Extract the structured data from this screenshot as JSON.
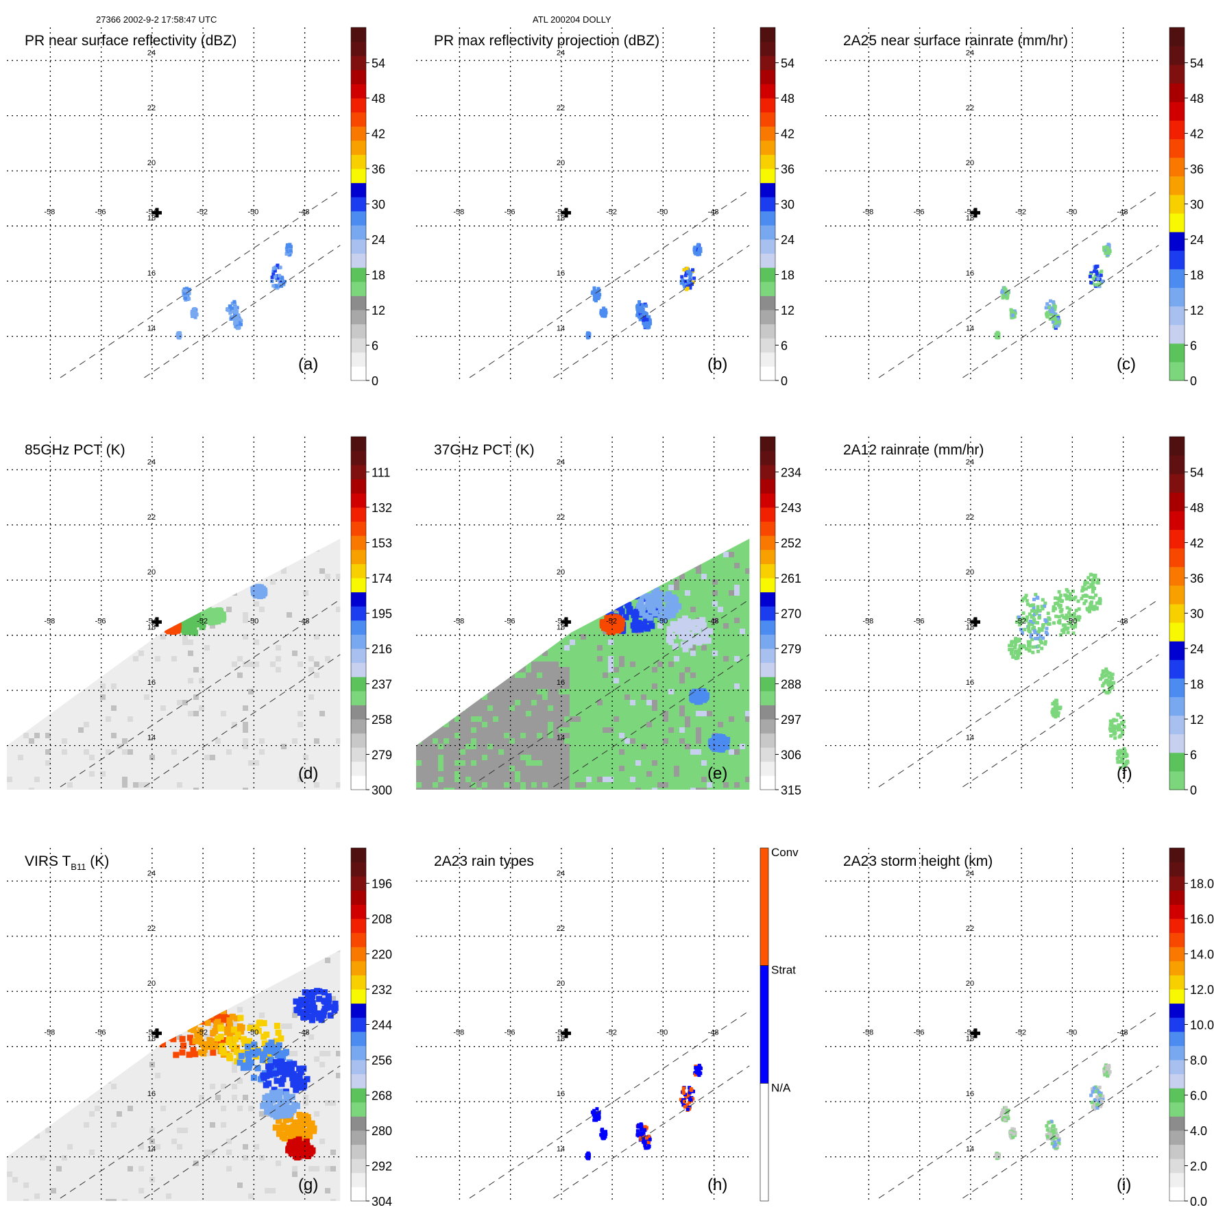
{
  "header": {
    "left": "27366 2002-9-2 17:58:47 UTC",
    "center": "ATL 200204 DOLLY"
  },
  "map": {
    "lon_ticks": [
      "-58",
      "-56",
      "-54",
      "-52",
      "-50",
      "-48"
    ],
    "lat_ticks": [
      "14",
      "16",
      "18",
      "20",
      "22",
      "24"
    ],
    "marker": "+"
  },
  "chart_data": [
    {
      "type": "heatmap",
      "panel": "(a)",
      "title": "PR near surface reflectivity (dBZ)",
      "colorbar": [
        "0",
        "6",
        "12",
        "18",
        "24",
        "30",
        "36",
        "42",
        "48",
        "54"
      ],
      "palette": "refl"
    },
    {
      "type": "heatmap",
      "panel": "(b)",
      "title": "PR max reflectivity projection (dBZ)",
      "colorbar": [
        "0",
        "6",
        "12",
        "18",
        "24",
        "30",
        "36",
        "42",
        "48",
        "54"
      ],
      "palette": "refl"
    },
    {
      "type": "heatmap",
      "panel": "(c)",
      "title": "2A25 near surface rainrate (mm/hr)",
      "colorbar": [
        "0",
        "6",
        "12",
        "18",
        "24",
        "30",
        "36",
        "42",
        "48",
        "54"
      ],
      "palette": "rain"
    },
    {
      "type": "heatmap",
      "panel": "(d)",
      "title": "85GHz PCT (K)",
      "colorbar": [
        "300",
        "279",
        "258",
        "237",
        "216",
        "195",
        "174",
        "153",
        "132",
        "111"
      ],
      "palette": "pct"
    },
    {
      "type": "heatmap",
      "panel": "(e)",
      "title": "37GHz PCT (K)",
      "colorbar": [
        "315",
        "306",
        "297",
        "288",
        "279",
        "270",
        "261",
        "252",
        "243",
        "234"
      ],
      "palette": "pct"
    },
    {
      "type": "heatmap",
      "panel": "(f)",
      "title": "2A12 rainrate (mm/hr)",
      "colorbar": [
        "0",
        "6",
        "12",
        "18",
        "24",
        "30",
        "36",
        "42",
        "48",
        "54"
      ],
      "palette": "rain"
    },
    {
      "type": "heatmap",
      "panel": "(g)",
      "title": "VIRS T",
      "title_sub": "B11",
      "title_end": " (K)",
      "colorbar": [
        "304",
        "292",
        "280",
        "268",
        "256",
        "244",
        "232",
        "220",
        "208",
        "196"
      ],
      "palette": "pct"
    },
    {
      "type": "heatmap",
      "panel": "(h)",
      "title": "2A23 rain types",
      "colorbar": [
        "N/A",
        "Strat",
        "Conv"
      ],
      "palette": "types"
    },
    {
      "type": "heatmap",
      "panel": "(i)",
      "title": "2A23 storm height (km)",
      "colorbar": [
        "0.0",
        "2.0",
        "4.0",
        "6.0",
        "8.0",
        "10.0",
        "12.0",
        "14.0",
        "16.0",
        "18.0"
      ],
      "palette": "height"
    }
  ],
  "colors": {
    "refl": [
      "#ffffff",
      "#f0f0f0",
      "#dcdcdc",
      "#c8c8c8",
      "#a8a8a8",
      "#8c8c8c",
      "#7cd67c",
      "#5cc35c",
      "#c8d0f0",
      "#a8c0f0",
      "#78a8f0",
      "#4c8cf0",
      "#1c3cf0",
      "#0000d0",
      "#f8f800",
      "#f8d000",
      "#f8a000",
      "#f87800",
      "#f84800",
      "#f02000",
      "#d00000",
      "#a80000",
      "#801010",
      "#601010",
      "#501010"
    ],
    "rain": [
      "#7cd67c",
      "#5cc35c",
      "#c8d0f0",
      "#a8c0f0",
      "#78a8f0",
      "#4c8cf0",
      "#1c3cf0",
      "#0000d0",
      "#f8f800",
      "#f8d000",
      "#f8a000",
      "#f87800",
      "#f84800",
      "#f02000",
      "#d00000",
      "#a80000",
      "#801010",
      "#601010",
      "#501010"
    ],
    "pct": [
      "#ffffff",
      "#f0f0f0",
      "#dcdcdc",
      "#c8c8c8",
      "#a8a8a8",
      "#8c8c8c",
      "#7cd67c",
      "#5cc35c",
      "#c8d0f0",
      "#a8c0f0",
      "#78a8f0",
      "#4c8cf0",
      "#1c3cf0",
      "#0000d0",
      "#f8f800",
      "#f8d000",
      "#f8a000",
      "#f87800",
      "#f84800",
      "#f02000",
      "#d00000",
      "#a80000",
      "#801010",
      "#601010",
      "#501010"
    ],
    "height": [
      "#ffffff",
      "#f0f0f0",
      "#dcdcdc",
      "#c8c8c8",
      "#a8a8a8",
      "#8c8c8c",
      "#7cd67c",
      "#5cc35c",
      "#c8d0f0",
      "#a8c0f0",
      "#78a8f0",
      "#4c8cf0",
      "#1c3cf0",
      "#0000d0",
      "#f8f800",
      "#f8d000",
      "#f8a000",
      "#f87800",
      "#f84800",
      "#f02000",
      "#d00000",
      "#a80000",
      "#801010",
      "#601010",
      "#501010"
    ],
    "types": [
      "#ffffff",
      "#0000ff",
      "#ff5500"
    ]
  }
}
